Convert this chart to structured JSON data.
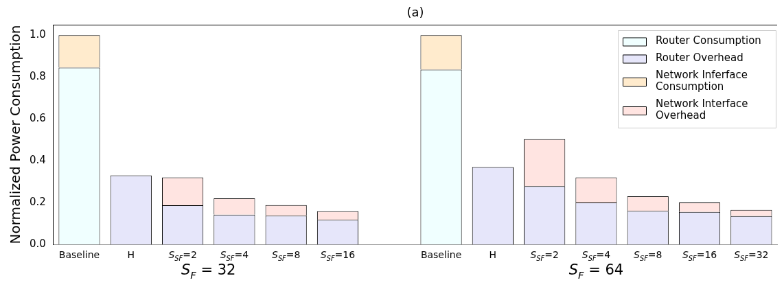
{
  "chart_data": {
    "type": "bar",
    "title": "(a)",
    "ylabel": "Normalized Power Consumption",
    "categories": [
      "Baseline",
      "H",
      "S$_{SF}$=2",
      "S$_{SF}$=4",
      "S$_{SF}$=8",
      "S$_{SF}$=16",
      null,
      "Baseline",
      "H",
      "S$_{SF}$=2",
      "S$_{SF}$=4",
      "S$_{SF}$=8",
      "S$_{SF}$=16",
      "S$_{SF}$=32"
    ],
    "series": [
      {
        "name": "Router Consumption",
        "color": "#f0ffff",
        "values": [
          0.845,
          null,
          null,
          null,
          null,
          null,
          null,
          0.835,
          null,
          null,
          null,
          null,
          null,
          null
        ]
      },
      {
        "name": "Router Overhead",
        "color": "#e6e6fa",
        "values": [
          null,
          0.33,
          0.187,
          0.142,
          0.137,
          0.117,
          null,
          null,
          0.37,
          0.278,
          0.2,
          0.16,
          0.155,
          0.135
        ]
      },
      {
        "name": "Network Inferface Consumption",
        "color": "#ffebcd",
        "values": [
          0.155,
          null,
          null,
          null,
          null,
          null,
          null,
          0.165,
          null,
          null,
          null,
          null,
          null,
          null
        ]
      },
      {
        "name": "Network Interface Overhead",
        "color": "#ffe4e1",
        "values": [
          null,
          null,
          0.133,
          0.078,
          0.051,
          0.041,
          null,
          null,
          null,
          0.225,
          0.12,
          0.07,
          0.045,
          0.03
        ]
      }
    ],
    "stacked": true,
    "ylim": [
      0,
      1.05
    ],
    "yticks": [
      {
        "value": 0,
        "label": "0.0"
      },
      {
        "value": 0.2,
        "label": "0.2"
      },
      {
        "value": 0.4,
        "label": "0.4"
      },
      {
        "value": 0.6,
        "label": "0.6"
      },
      {
        "value": 0.8,
        "label": "0.8"
      },
      {
        "value": 1,
        "label": "1.0"
      }
    ],
    "grid": false,
    "legend": "top right",
    "annotations": [
      "S$_{F}$ = 32",
      "S$_{F}$ = 64"
    ]
  }
}
